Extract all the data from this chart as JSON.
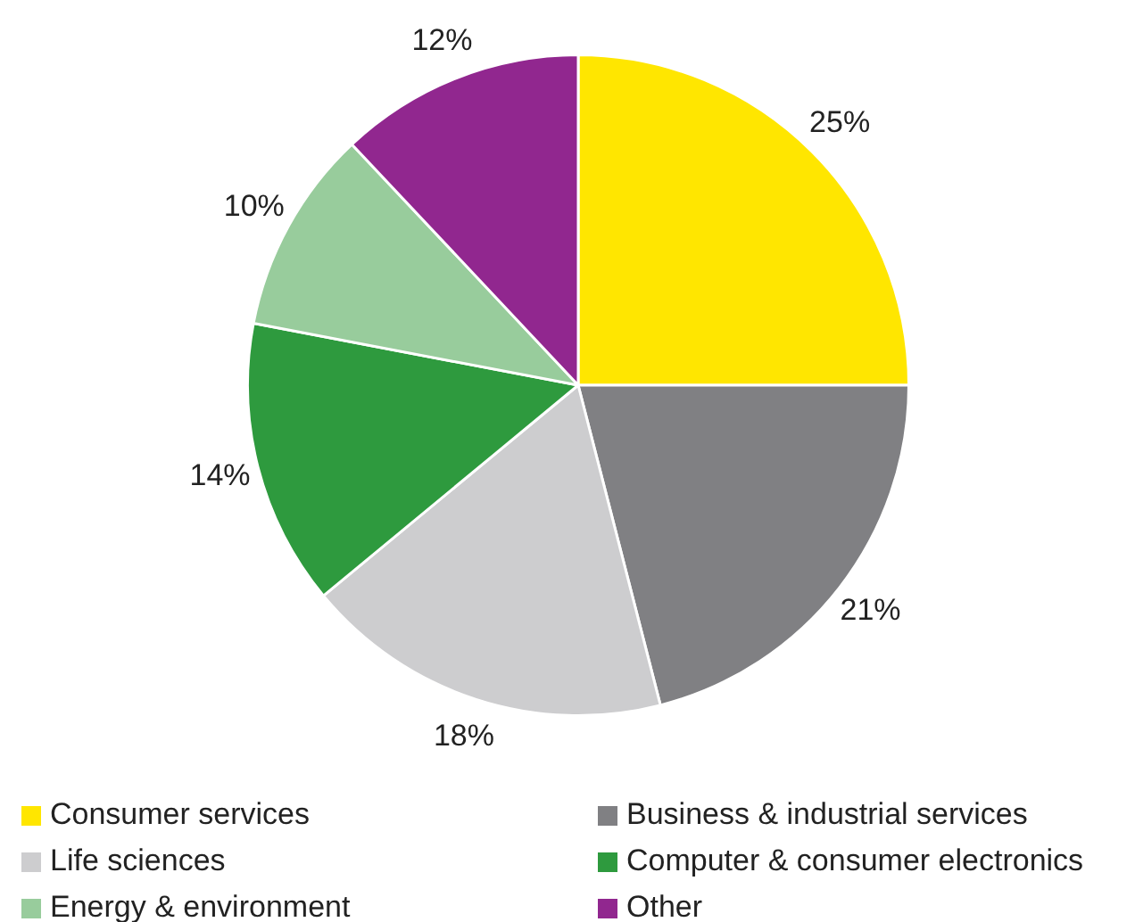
{
  "chart_data": {
    "type": "pie",
    "categories": [
      "Consumer services",
      "Business & industrial services",
      "Life sciences",
      "Computer & consumer electronics",
      "Energy & environment",
      "Other"
    ],
    "values": [
      25,
      21,
      18,
      14,
      10,
      12
    ],
    "colors": [
      "#ffe600",
      "#808083",
      "#cdcdcf",
      "#2e9a3e",
      "#98cc9c",
      "#91278f"
    ],
    "value_labels": [
      "25%",
      "21%",
      "18%",
      "14%",
      "10%",
      "12%"
    ],
    "legend": "bottom"
  }
}
